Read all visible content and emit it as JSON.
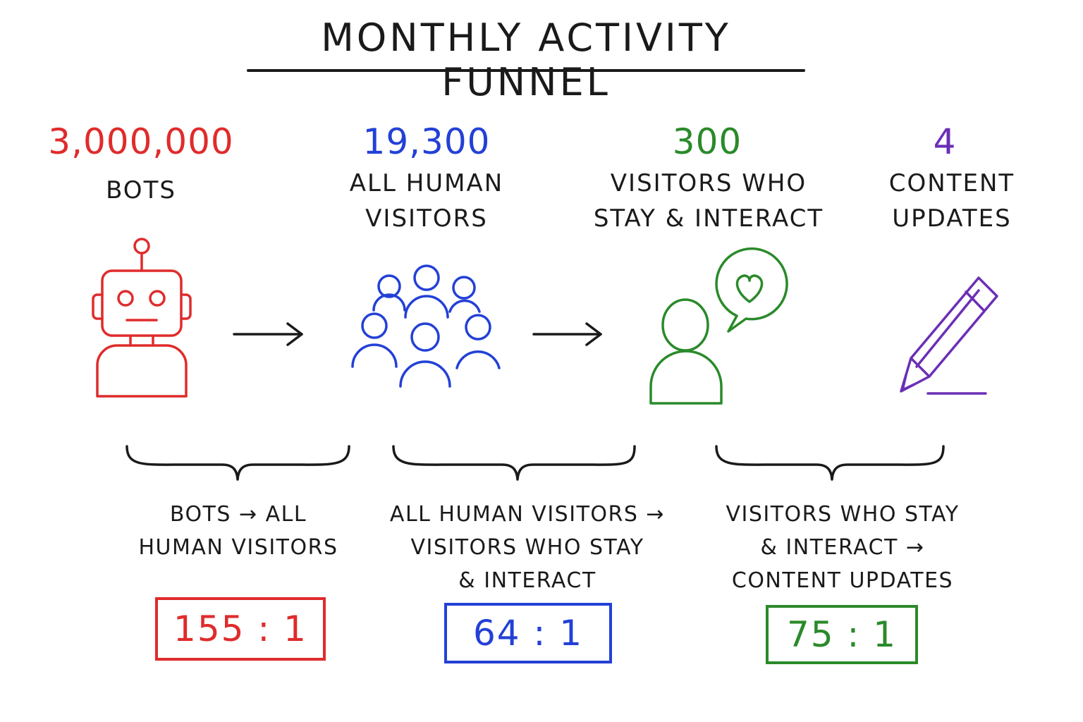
{
  "title": "MONTHLY ACTIVITY FUNNEL",
  "colors": {
    "bots": "#e02b2b",
    "humans": "#2340d6",
    "interact": "#2a8a2a",
    "updates": "#6b2fb5",
    "ink": "#1a1a1a"
  },
  "stages": [
    {
      "count": "3,000,000",
      "label_lines": [
        "BOTS"
      ],
      "icon": "robot-icon"
    },
    {
      "count": "19,300",
      "label_lines": [
        "ALL HUMAN",
        "VISITORS"
      ],
      "icon": "group-icon"
    },
    {
      "count": "300",
      "label_lines": [
        "VISITORS WHO",
        "STAY & INTERACT"
      ],
      "icon": "person-heart-icon"
    },
    {
      "count": "4",
      "label_lines": [
        "CONTENT",
        "UPDATES"
      ],
      "icon": "pencil-icon"
    }
  ],
  "ratios": [
    {
      "desc_lines": [
        "BOTS → ALL",
        "HUMAN VISITORS"
      ],
      "value": "155 : 1"
    },
    {
      "desc_lines": [
        "ALL HUMAN VISITORS →",
        "VISITORS WHO STAY",
        "& INTERACT"
      ],
      "value": "64 : 1"
    },
    {
      "desc_lines": [
        "VISITORS WHO STAY",
        "& INTERACT →",
        "CONTENT UPDATES"
      ],
      "value": "75 : 1"
    }
  ]
}
